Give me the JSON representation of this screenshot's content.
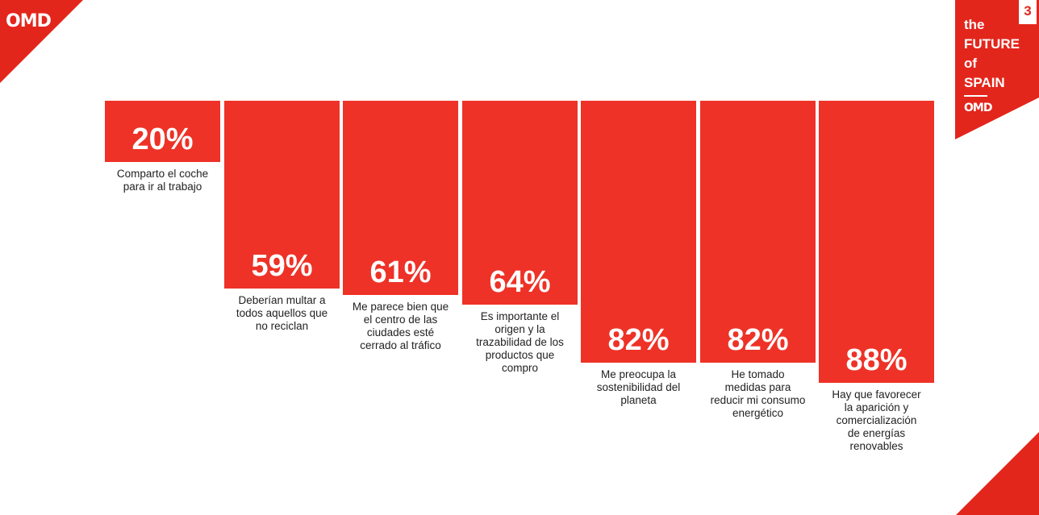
{
  "brand": {
    "logo_top_left": "OMD",
    "title_lines": [
      "the",
      "FUTURE",
      "of",
      "SPAIN"
    ],
    "logo_small": "OMD",
    "page_number": "3",
    "accent_color": "#ee3227"
  },
  "chart_data": {
    "type": "bar",
    "orientation": "hanging-from-top",
    "categories": [
      "Comparto el coche para ir al trabajo",
      "Deberían multar a todos aquellos que no reciclan",
      "Me parece bien que el centro de las ciudades esté cerrado al tráfico",
      "Es importante el origen y la trazabilidad de los productos que compro",
      "Me preocupa la sostenibilidad del planeta",
      "He tomado medidas para reducir mi consumo energético",
      "Hay que favorecer la aparición y comercialización de energías renovables"
    ],
    "values": [
      20,
      59,
      61,
      64,
      82,
      82,
      88
    ],
    "value_labels": [
      "20%",
      "59%",
      "61%",
      "64%",
      "82%",
      "82%",
      "88%"
    ],
    "category_label_lines": [
      [
        "Comparto el coche",
        "para ir al trabajo"
      ],
      [
        "Deberían multar a",
        "todos aquellos que",
        "no reciclan"
      ],
      [
        "Me parece bien que",
        "el centro de las",
        "ciudades esté",
        "cerrado al tráfico"
      ],
      [
        "Es importante el",
        "origen y la",
        "trazabilidad de los",
        "productos que",
        "compro"
      ],
      [
        "Me preocupa la",
        "sostenibilidad del",
        "planeta"
      ],
      [
        "He tomado",
        "medidas para",
        "reducir mi consumo",
        "energético"
      ],
      [
        "Hay que favorecer",
        "la aparición y",
        "comercialización",
        "de energías",
        "renovables"
      ]
    ],
    "ylim": [
      0,
      100
    ]
  }
}
